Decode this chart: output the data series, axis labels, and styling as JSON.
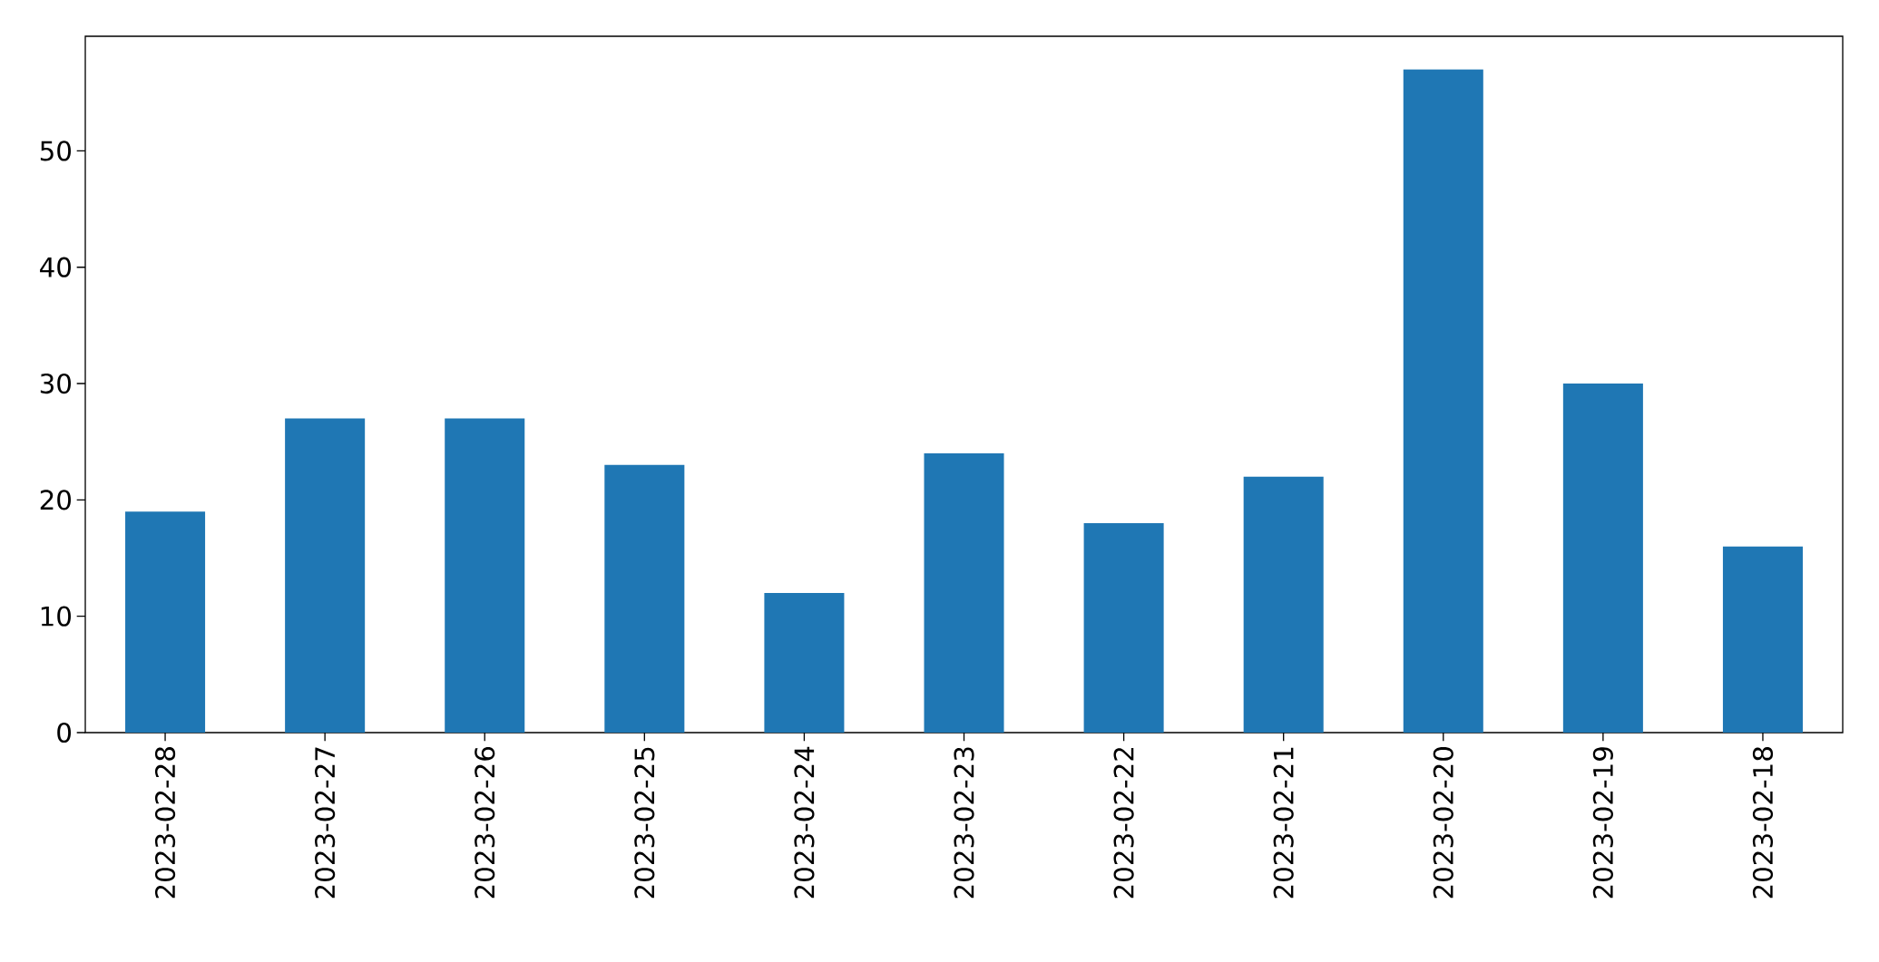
{
  "chart_data": {
    "type": "bar",
    "categories": [
      "2023-02-28",
      "2023-02-27",
      "2023-02-26",
      "2023-02-25",
      "2023-02-24",
      "2023-02-23",
      "2023-02-22",
      "2023-02-21",
      "2023-02-20",
      "2023-02-19",
      "2023-02-18"
    ],
    "values": [
      19,
      27,
      27,
      23,
      12,
      24,
      18,
      22,
      57,
      30,
      16
    ],
    "color": "#1f77b4",
    "ylim": [
      0,
      59.85
    ],
    "yticks": [
      0,
      10,
      20,
      30,
      40,
      50
    ]
  }
}
